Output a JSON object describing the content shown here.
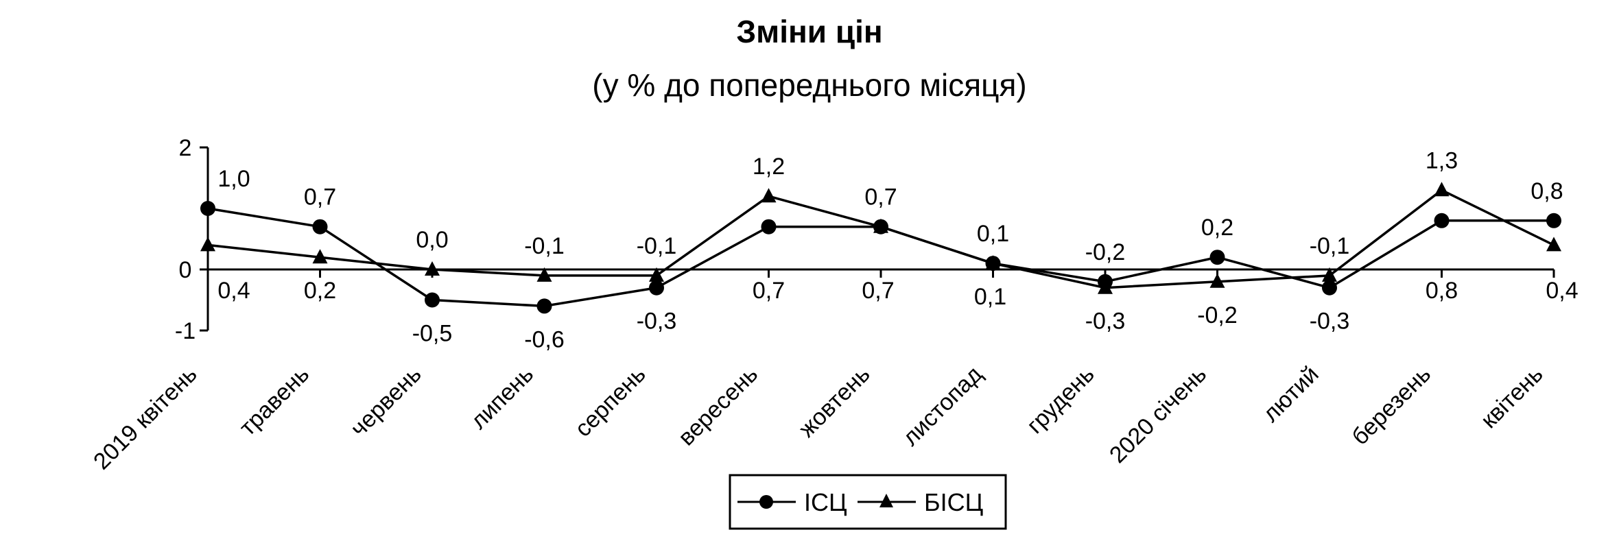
{
  "chart_data": {
    "type": "line",
    "title": "Зміни цін",
    "subtitle": "(у % до попереднього місяця)",
    "categories": [
      "2019 квітень",
      "травень",
      "червень",
      "липень",
      "серпень",
      "вересень",
      "жовтень",
      "листопад",
      "грудень",
      "2020 січень",
      "лютий",
      "березень",
      "квітень"
    ],
    "series": [
      {
        "name": "ІСЦ",
        "marker": "circle",
        "values": [
          1.0,
          0.7,
          -0.5,
          -0.6,
          -0.3,
          0.7,
          0.7,
          0.1,
          -0.2,
          0.2,
          -0.3,
          0.8,
          0.8
        ],
        "labels": [
          "1,0",
          "0,7",
          "-0,5",
          "-0,6",
          "-0,3",
          "0,7",
          "0,7",
          "0,1",
          "-0,2",
          "0,2",
          "-0,3",
          "0,8",
          "0,8"
        ]
      },
      {
        "name": "БІСЦ",
        "marker": "triangle",
        "values": [
          0.4,
          0.2,
          0.0,
          -0.1,
          -0.1,
          1.2,
          0.7,
          0.1,
          -0.3,
          -0.2,
          -0.1,
          1.3,
          0.4
        ],
        "labels": [
          "0,4",
          "0,2",
          "0,0",
          "-0,1",
          "-0,1",
          "1,2",
          "0,7",
          "0,1",
          "-0,3",
          "-0,2",
          "-0,1",
          "1,3",
          "0,4"
        ]
      }
    ],
    "y_ticks": [
      2,
      0,
      -1
    ],
    "y_tick_labels": [
      "2",
      "0",
      "-1"
    ],
    "ylim": [
      -1,
      2
    ],
    "grid": false,
    "legend_position": "bottom",
    "color": "#000000"
  }
}
